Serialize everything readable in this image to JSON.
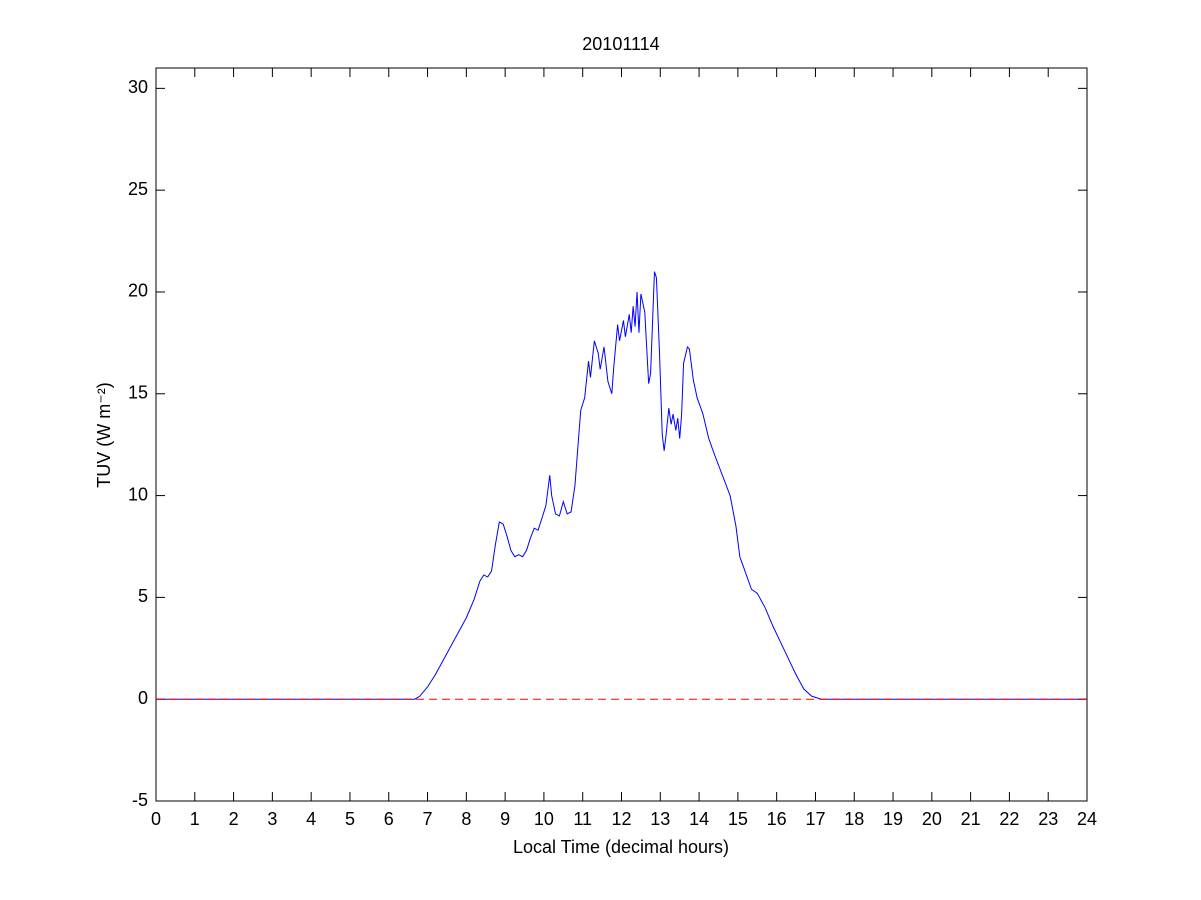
{
  "chart_data": {
    "type": "line",
    "title": "20101114",
    "x_label": "Local Time (decimal hours)",
    "y_label": "TUV (W m⁻²)",
    "xlim": [
      0,
      24
    ],
    "xticks": [
      0,
      1,
      2,
      3,
      4,
      5,
      6,
      7,
      8,
      9,
      10,
      11,
      12,
      13,
      14,
      15,
      16,
      17,
      18,
      19,
      20,
      21,
      22,
      23,
      24
    ],
    "ylim": [
      -5,
      31
    ],
    "yticks": [
      -5,
      0,
      5,
      10,
      15,
      20,
      25,
      30
    ],
    "grid": false,
    "series": [
      {
        "color": "#0000ff",
        "linestyle": "solid",
        "x": [
          0,
          6.67,
          6.8,
          7.0,
          7.2,
          7.4,
          7.6,
          7.8,
          8.0,
          8.2,
          8.35,
          8.45,
          8.55,
          8.65,
          8.75,
          8.85,
          8.95,
          9.05,
          9.15,
          9.25,
          9.35,
          9.45,
          9.55,
          9.65,
          9.75,
          9.85,
          9.95,
          10.05,
          10.15,
          10.2,
          10.3,
          10.4,
          10.5,
          10.6,
          10.7,
          10.8,
          10.9,
          10.95,
          11.05,
          11.15,
          11.2,
          11.3,
          11.4,
          11.45,
          11.55,
          11.65,
          11.75,
          11.8,
          11.9,
          11.95,
          12.05,
          12.1,
          12.2,
          12.25,
          12.3,
          12.35,
          12.4,
          12.45,
          12.5,
          12.6,
          12.7,
          12.75,
          12.85,
          12.9,
          12.98,
          13.05,
          13.1,
          13.15,
          13.22,
          13.28,
          13.33,
          13.4,
          13.45,
          13.5,
          13.55,
          13.6,
          13.7,
          13.75,
          13.85,
          13.95,
          14.1,
          14.25,
          14.4,
          14.6,
          14.8,
          14.95,
          15.05,
          15.2,
          15.35,
          15.5,
          15.7,
          15.9,
          16.1,
          16.3,
          16.5,
          16.7,
          16.9,
          17.15,
          24
        ],
        "values": [
          0,
          0,
          0.15,
          0.6,
          1.2,
          1.9,
          2.6,
          3.3,
          4.0,
          4.9,
          5.8,
          6.1,
          6.0,
          6.3,
          7.6,
          8.7,
          8.6,
          8.0,
          7.3,
          7.0,
          7.1,
          7.0,
          7.3,
          7.9,
          8.4,
          8.3,
          8.9,
          9.5,
          11.0,
          10.0,
          9.1,
          9.0,
          9.7,
          9.1,
          9.2,
          10.5,
          13.0,
          14.2,
          14.8,
          16.6,
          15.8,
          17.6,
          17.0,
          16.2,
          17.3,
          15.6,
          15.0,
          16.3,
          18.4,
          17.6,
          18.6,
          17.8,
          18.9,
          18.0,
          19.3,
          18.3,
          20.0,
          18.0,
          19.9,
          19.0,
          15.5,
          16.0,
          21.0,
          20.7,
          17.0,
          13.0,
          12.2,
          13.0,
          14.3,
          13.5,
          14.0,
          13.2,
          13.8,
          12.8,
          14.0,
          16.5,
          17.3,
          17.2,
          15.7,
          14.8,
          14.0,
          12.8,
          12.0,
          11.0,
          10.0,
          8.5,
          7.0,
          6.2,
          5.4,
          5.2,
          4.5,
          3.6,
          2.8,
          2.0,
          1.2,
          0.5,
          0.15,
          0,
          0
        ]
      },
      {
        "color": "#ff0000",
        "linestyle": "dashed",
        "x": [
          0,
          24
        ],
        "values": [
          0,
          0
        ]
      }
    ]
  }
}
